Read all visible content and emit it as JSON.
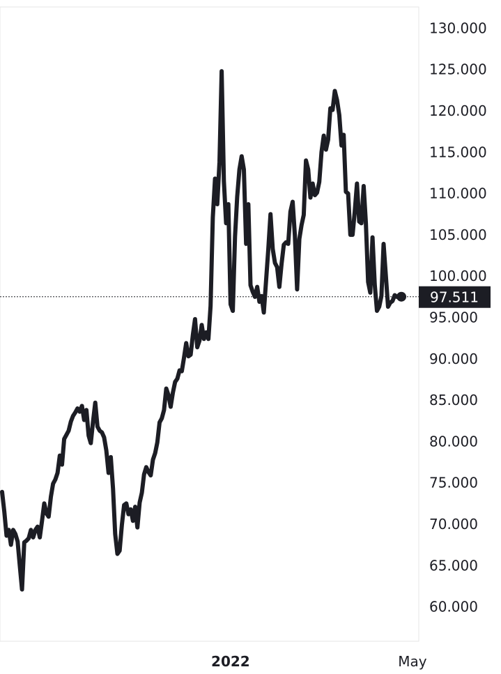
{
  "chart_data": {
    "type": "line",
    "title": "",
    "xlabel": "",
    "ylabel": "",
    "ylim": [
      55,
      131
    ],
    "y_ticks": [
      "130.000",
      "125.000",
      "120.000",
      "115.000",
      "110.000",
      "105.000",
      "100.000",
      "95.000",
      "90.000",
      "85.000",
      "80.000",
      "75.000",
      "70.000",
      "65.000",
      "60.000"
    ],
    "x_ticks": [
      {
        "label": "2022",
        "index": 103,
        "bold": true
      },
      {
        "label": "May",
        "index": 185,
        "bold": false
      }
    ],
    "last_value": 97.511,
    "last_value_label": "97.511",
    "colors": {
      "line": "#1c1d24",
      "label_bg": "#1c1d24",
      "label_text": "#ffffff",
      "grid": "#e6e6e6"
    },
    "series": [
      {
        "values": [
          73.9,
          71.5,
          68.6,
          69.3,
          67.5,
          69.3,
          68.8,
          67.9,
          64.9,
          62.1,
          67.8,
          68.0,
          68.3,
          69.3,
          68.4,
          69.3,
          69.7,
          68.4,
          70.4,
          72.5,
          71.3,
          70.9,
          73.3,
          74.9,
          75.4,
          76.2,
          78.3,
          77.2,
          80.3,
          80.8,
          81.3,
          82.4,
          83.1,
          83.5,
          84.0,
          83.6,
          84.3,
          82.6,
          83.8,
          80.7,
          79.8,
          82.4,
          84.7,
          81.8,
          81.3,
          81.1,
          80.5,
          78.9,
          76.2,
          78.1,
          74.3,
          68.8,
          66.4,
          66.8,
          69.9,
          72.3,
          72.5,
          71.2,
          71.8,
          70.4,
          72.1,
          69.6,
          72.6,
          73.8,
          76.0,
          76.9,
          76.3,
          75.9,
          77.8,
          78.6,
          79.9,
          82.3,
          82.8,
          83.8,
          86.4,
          85.6,
          84.2,
          85.9,
          87.2,
          87.6,
          88.6,
          88.5,
          90.1,
          91.9,
          90.3,
          90.5,
          92.9,
          94.8,
          91.4,
          92.2,
          94.1,
          92.4,
          93.2,
          92.4,
          96.4,
          107.1,
          111.8,
          108.7,
          113.8,
          124.8,
          111.5,
          106.4,
          108.7,
          96.6,
          95.8,
          104.8,
          109.6,
          112.9,
          114.5,
          112.9,
          103.9,
          108.7,
          98.9,
          98.1,
          97.5,
          98.7,
          96.9,
          97.6,
          95.6,
          99.4,
          103.2,
          107.5,
          103.3,
          101.6,
          101.1,
          98.7,
          101.5,
          103.8,
          104.1,
          103.9,
          107.8,
          109.0,
          104.9,
          98.4,
          104.5,
          106.2,
          107.4,
          114.0,
          112.9,
          109.5,
          111.2,
          109.8,
          110.1,
          111.4,
          115.0,
          117.0,
          115.3,
          116.5,
          120.3,
          120.1,
          122.4,
          121.3,
          119.5,
          115.8,
          117.1,
          110.2,
          110.0,
          105.0,
          105.0,
          107.8,
          111.2,
          106.6,
          106.4,
          110.9,
          106.4,
          99.3,
          98.0,
          104.7,
          99.0,
          95.8,
          96.3,
          97.6,
          103.9,
          100.1,
          96.3,
          96.8,
          97.0,
          97.7,
          97.5,
          97.6,
          97.5
        ]
      }
    ]
  }
}
